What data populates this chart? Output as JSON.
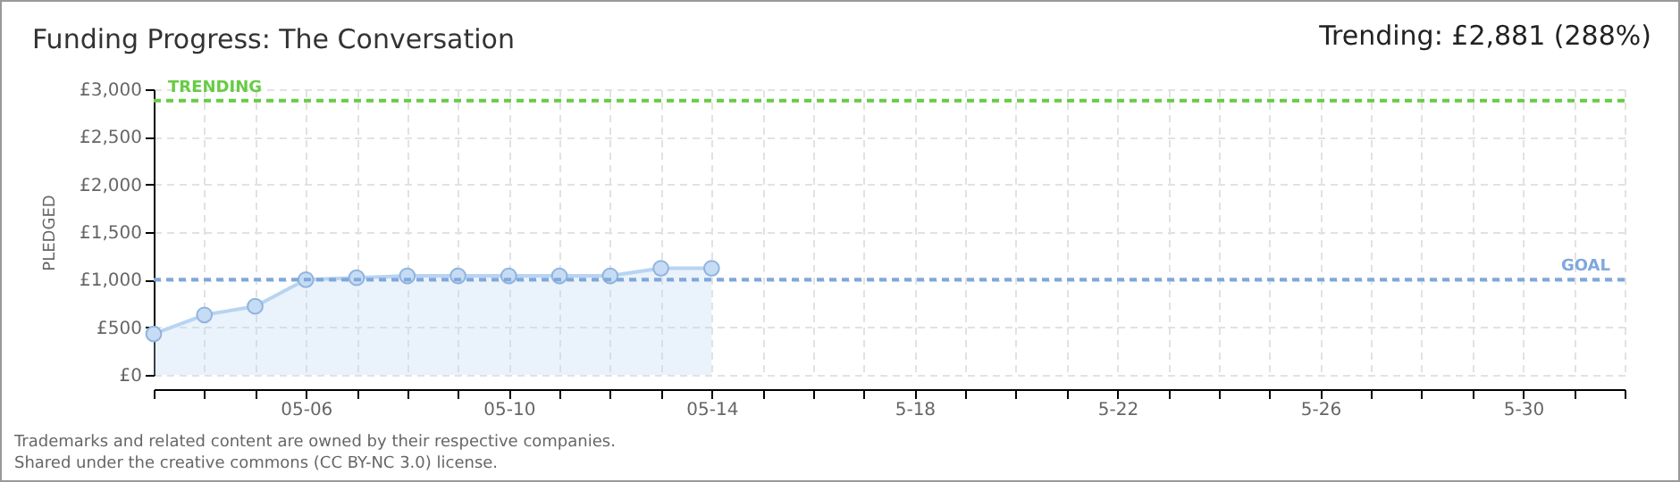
{
  "chart_data": {
    "type": "area",
    "title": "Funding Progress: The Conversation",
    "subtitle": "Trending: £2,881 (288%)",
    "ylabel": "PLEDGED",
    "x": [
      "--05-03",
      "--05-04",
      "--05-05",
      "--05-06",
      "--05-07",
      "--05-08",
      "--05-09",
      "--05-10",
      "--05-11",
      "--05-12",
      "--05-13",
      "--05-14"
    ],
    "series": [
      {
        "color": "#b8d4f2",
        "values": [
          430,
          630,
          720,
          1000,
          1020,
          1040,
          1040,
          1040,
          1040,
          1040,
          1120,
          1120
        ]
      }
    ],
    "xlim": [
      "--05-03",
      "--06-01"
    ],
    "xticks": [
      {
        "value": "--05-03",
        "label": null
      },
      {
        "value": "--05-04",
        "label": null
      },
      {
        "value": "--05-05",
        "label": null
      },
      {
        "value": "--05-06",
        "label": "05-06"
      },
      {
        "value": "--05-07",
        "label": null
      },
      {
        "value": "--05-08",
        "label": null
      },
      {
        "value": "--05-09",
        "label": null
      },
      {
        "value": "--05-10",
        "label": "05-10"
      },
      {
        "value": "--05-11",
        "label": null
      },
      {
        "value": "--05-12",
        "label": null
      },
      {
        "value": "--05-13",
        "label": null
      },
      {
        "value": "--05-14",
        "label": "05-14"
      },
      {
        "value": "--05-15",
        "label": null
      },
      {
        "value": "--05-16",
        "label": null
      },
      {
        "value": "--05-17",
        "label": null
      },
      {
        "value": "--05-18",
        "label": "5-18"
      },
      {
        "value": "--05-19",
        "label": null
      },
      {
        "value": "--05-20",
        "label": null
      },
      {
        "value": "--05-21",
        "label": null
      },
      {
        "value": "--05-22",
        "label": "5-22"
      },
      {
        "value": "--05-23",
        "label": null
      },
      {
        "value": "--05-24",
        "label": null
      },
      {
        "value": "--05-25",
        "label": null
      },
      {
        "value": "--05-26",
        "label": "5-26"
      },
      {
        "value": "--05-27",
        "label": null
      },
      {
        "value": "--05-28",
        "label": null
      },
      {
        "value": "--05-29",
        "label": null
      },
      {
        "value": "--05-30",
        "label": "5-30"
      },
      {
        "value": "--05-31",
        "label": null
      },
      {
        "value": "--06-01",
        "label": null
      }
    ],
    "ylim": [
      0,
      3000
    ],
    "yticks": [
      {
        "value": 0,
        "label": "£0"
      },
      {
        "value": 500,
        "label": "£500"
      },
      {
        "value": 1000,
        "label": "£1,000"
      },
      {
        "value": 1500,
        "label": "£1,500"
      },
      {
        "value": 2000,
        "label": "£2,000"
      },
      {
        "value": 2500,
        "label": "£2,500"
      },
      {
        "value": 3000,
        "label": "£3,000"
      }
    ],
    "grid": true,
    "marker": "circle",
    "ref_lines": [
      {
        "axis": "y",
        "value": 2881,
        "label": "TRENDING",
        "color": "#66cc44",
        "line_style": "dashed"
      },
      {
        "axis": "y",
        "value": 1000,
        "label": "GOAL",
        "color": "#7fa8dc",
        "line_style": "dashed"
      }
    ],
    "annotations": [
      "Trademarks and related content are owned by their respective companies.",
      "Shared under the creative commons (CC BY-NC 3.0) license."
    ]
  }
}
